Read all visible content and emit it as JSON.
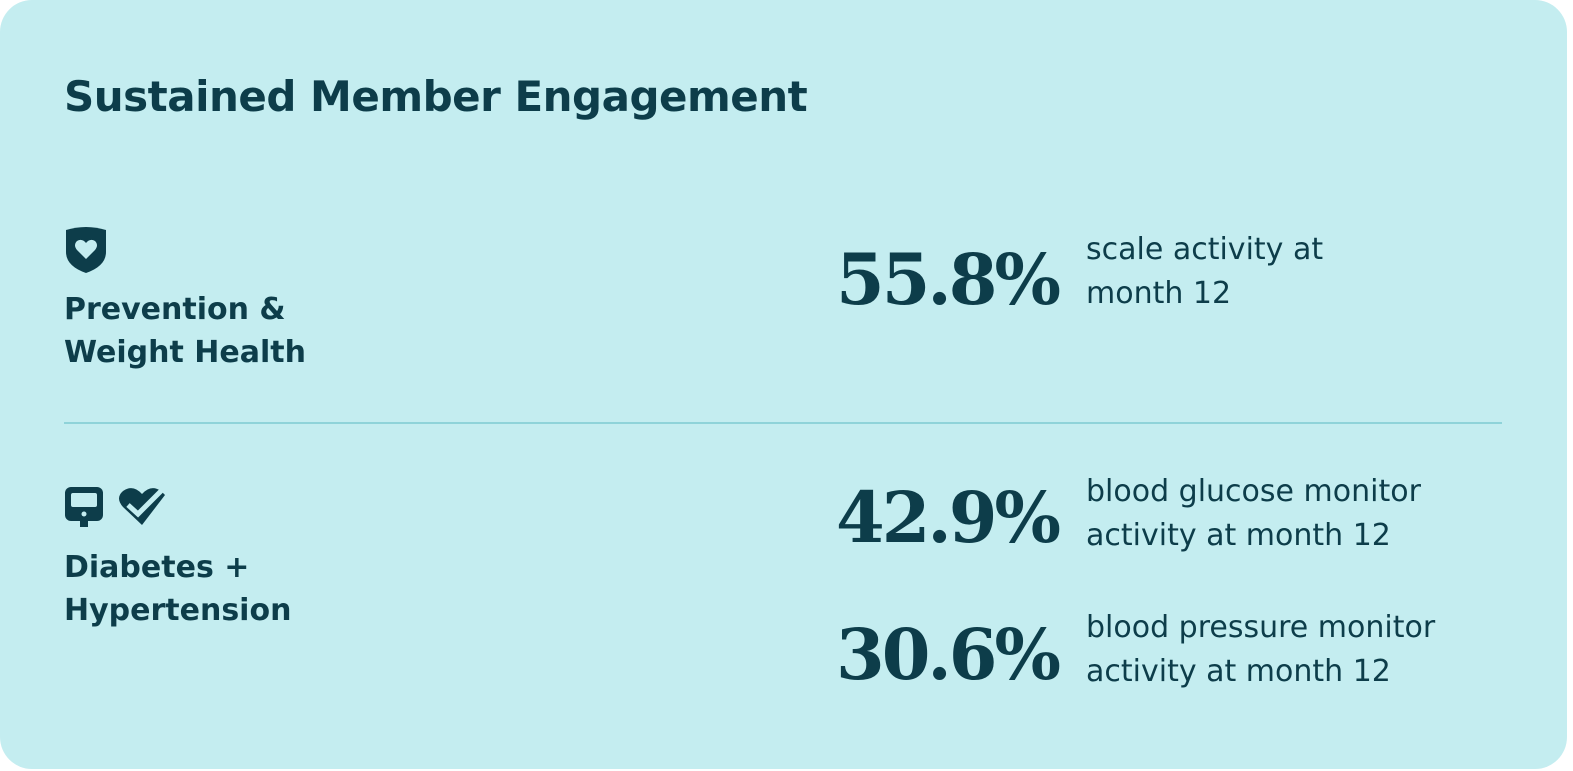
{
  "title": "Sustained Member Engagement",
  "sections": [
    {
      "label": [
        "Prevention &",
        "Weight Health"
      ],
      "stats": [
        {
          "value": "55.8%",
          "description": [
            "scale activity at",
            "month 12"
          ]
        }
      ]
    },
    {
      "label": [
        "Diabetes +",
        "Hypertension"
      ],
      "stats": [
        {
          "value": "42.9%",
          "description": [
            "blood glucose monitor",
            "activity at month 12"
          ]
        },
        {
          "value": "30.6%",
          "description": [
            "blood pressure monitor",
            "activity at month 12"
          ]
        }
      ]
    }
  ]
}
